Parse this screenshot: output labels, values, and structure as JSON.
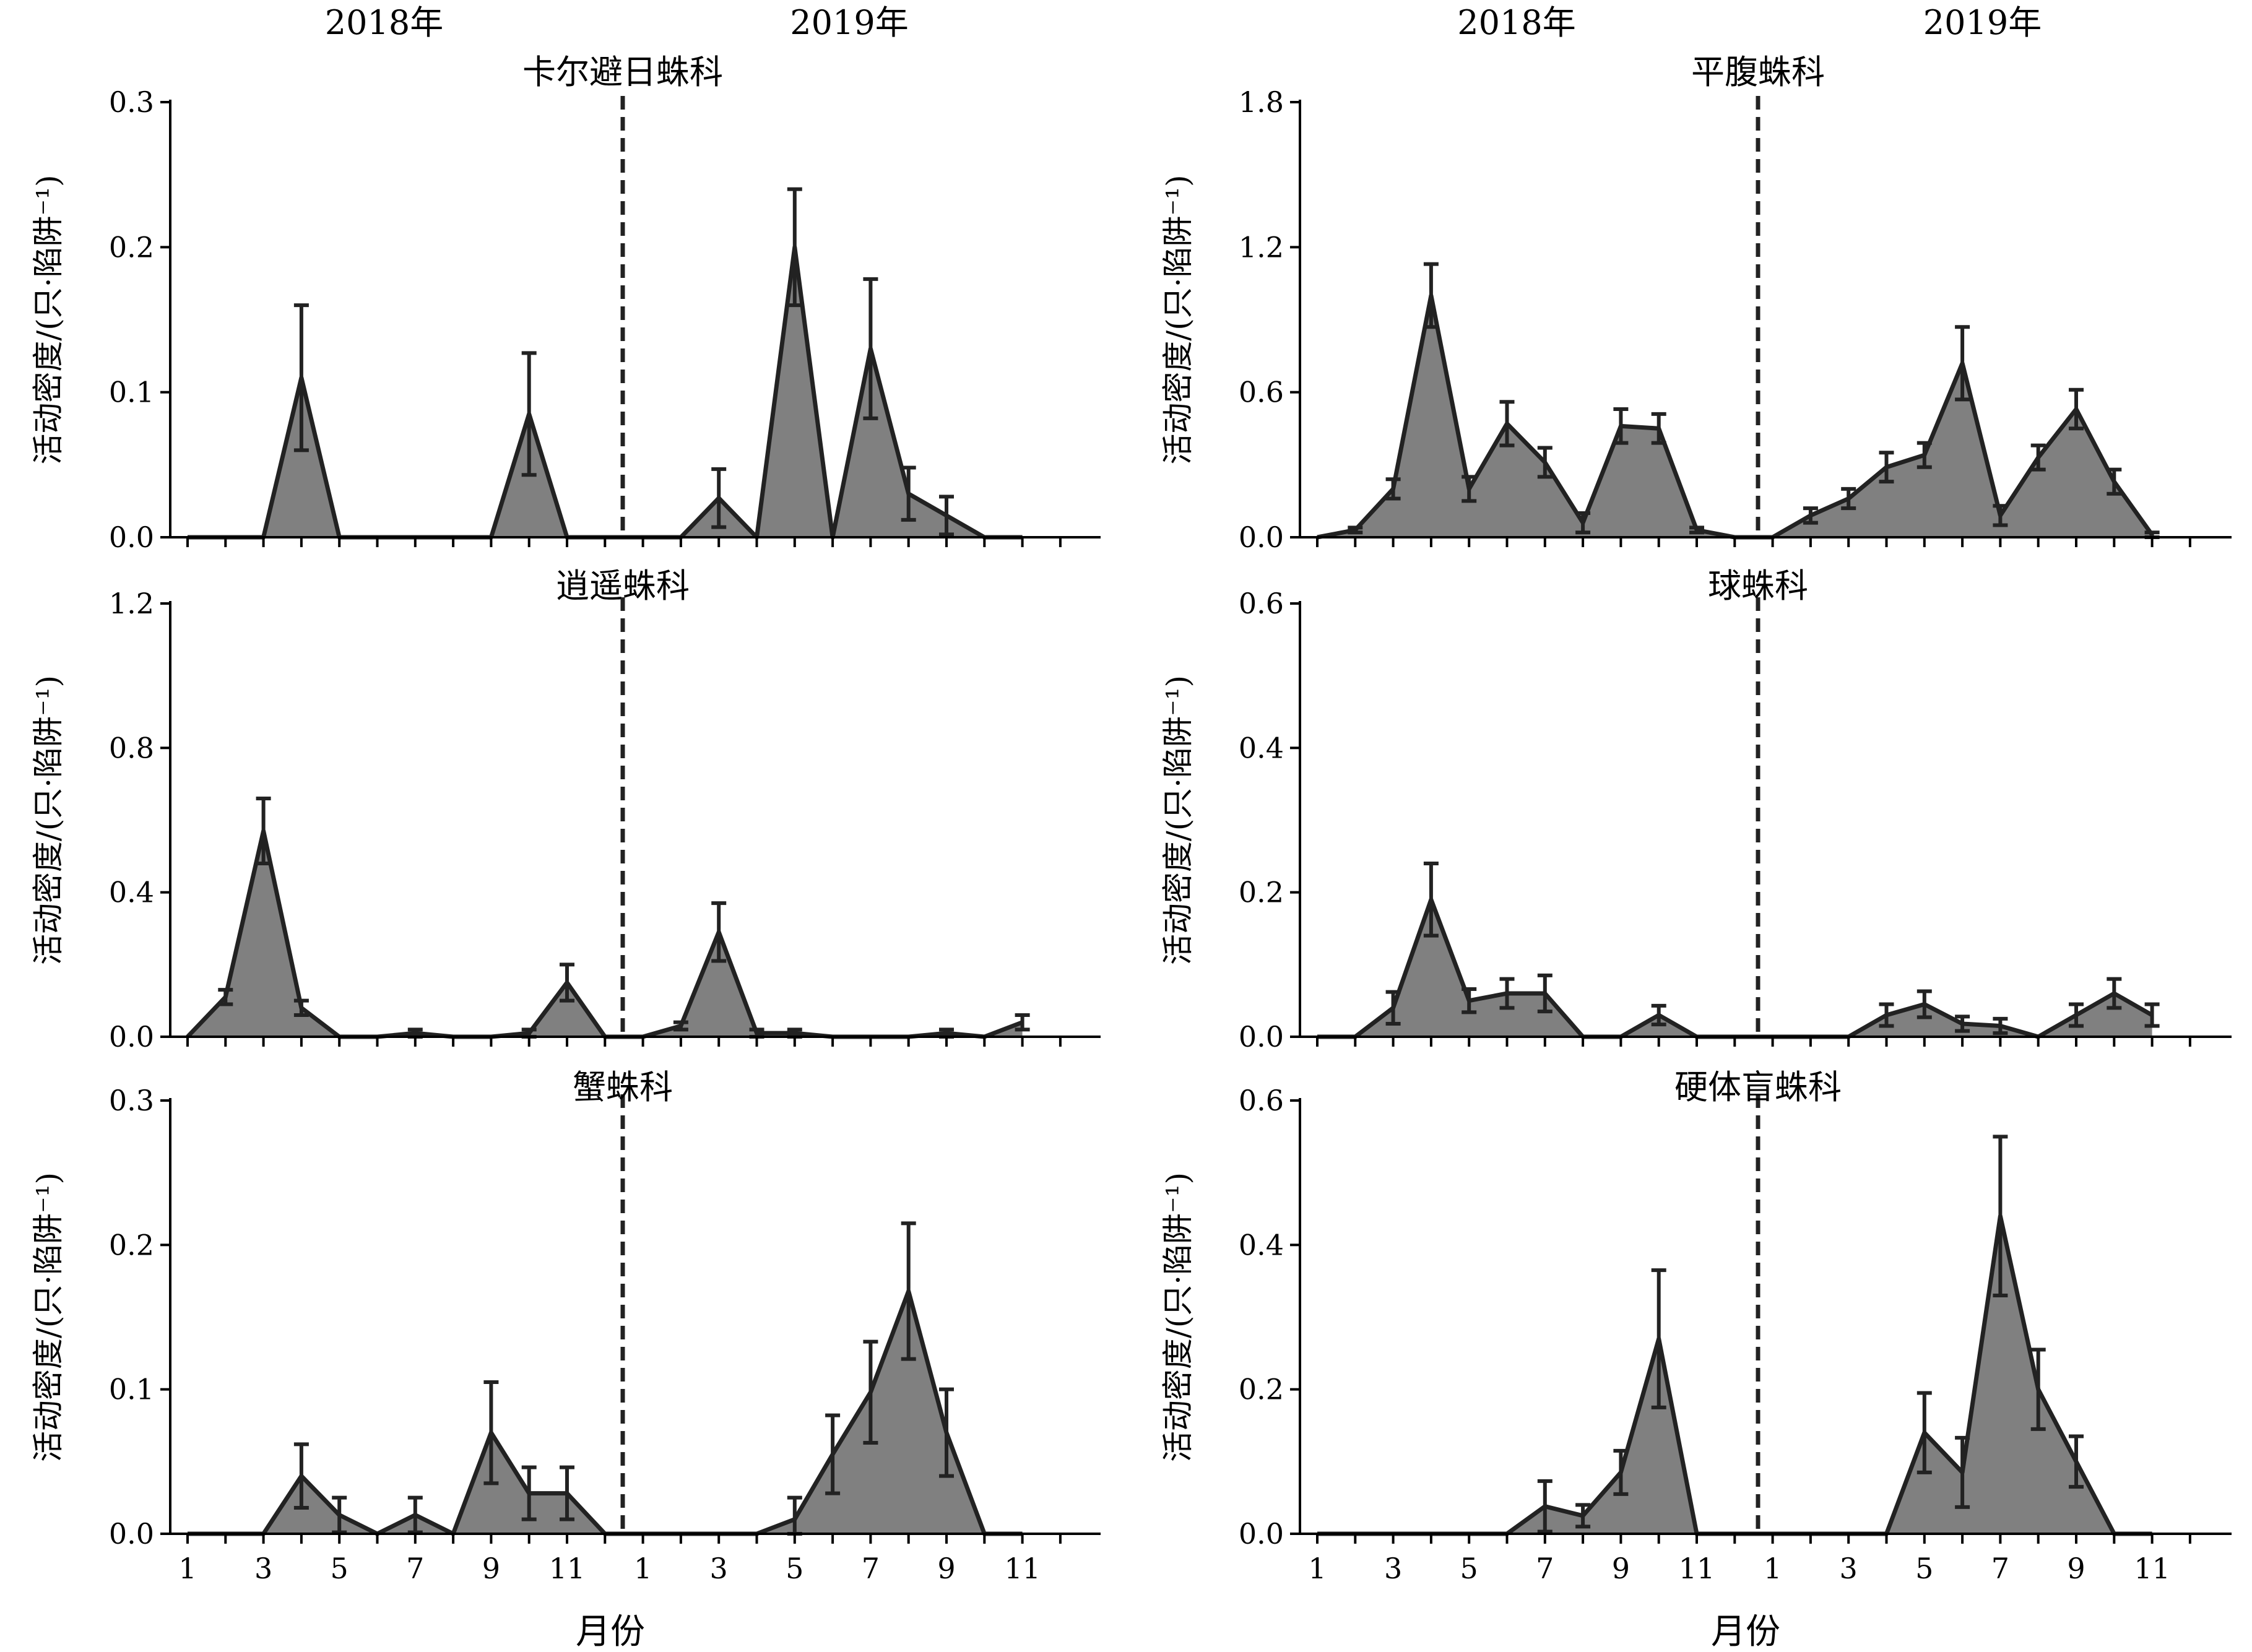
{
  "style": {
    "fill_color": "#808080",
    "line_color": "#222222",
    "axis_color": "#000000"
  },
  "chart_data": [
    {
      "type": "area",
      "title": "卡尔避日蛛科",
      "ylabel": "活动密度/(只·陷阱⁻¹)",
      "xlabel": "",
      "ylim": [
        0,
        0.3
      ],
      "yticks": [
        "0.0",
        "0.1",
        "0.2",
        "0.3"
      ],
      "x": [
        1,
        2,
        3,
        4,
        5,
        6,
        7,
        8,
        9,
        10,
        11,
        12,
        13,
        14,
        15,
        16,
        17,
        18,
        19,
        20,
        21,
        22,
        23
      ],
      "values": [
        0,
        0,
        0,
        0.11,
        0,
        0,
        0,
        0,
        0,
        0.085,
        0,
        0,
        0,
        0,
        0.027,
        0,
        0.2,
        0,
        0.13,
        0.03,
        0.015,
        0,
        0
      ],
      "errors": [
        0,
        0,
        0,
        0.05,
        0,
        0,
        0,
        0,
        0,
        0.042,
        0,
        0,
        0,
        0,
        0.02,
        0,
        0.04,
        0,
        0.048,
        0.018,
        0.013,
        0,
        0
      ],
      "years": [
        "2018年",
        "2019年"
      ]
    },
    {
      "type": "area",
      "title": "平腹蛛科",
      "ylabel": "活动密度/(只·陷阱⁻¹)",
      "xlabel": "",
      "ylim": [
        0,
        1.8
      ],
      "yticks": [
        "0.0",
        "0.6",
        "1.2",
        "1.8"
      ],
      "x": [
        1,
        2,
        3,
        4,
        5,
        6,
        7,
        8,
        9,
        10,
        11,
        12,
        13,
        14,
        15,
        16,
        17,
        18,
        19,
        20,
        21,
        22,
        23
      ],
      "values": [
        0,
        0.03,
        0.2,
        1.0,
        0.2,
        0.47,
        0.31,
        0.06,
        0.46,
        0.45,
        0.03,
        0,
        0,
        0.09,
        0.16,
        0.29,
        0.34,
        0.72,
        0.09,
        0.33,
        0.53,
        0.23,
        0.01
      ],
      "errors": [
        0,
        0.01,
        0.04,
        0.13,
        0.05,
        0.09,
        0.06,
        0.04,
        0.07,
        0.06,
        0.01,
        0,
        0,
        0.03,
        0.04,
        0.06,
        0.05,
        0.15,
        0.04,
        0.05,
        0.08,
        0.05,
        0.01
      ],
      "years": [
        "2018年",
        "2019年"
      ]
    },
    {
      "type": "area",
      "title": "逍遥蛛科",
      "ylabel": "活动密度/(只·陷阱⁻¹)",
      "xlabel": "",
      "ylim": [
        0,
        1.2
      ],
      "yticks": [
        "0.0",
        "0.4",
        "0.8",
        "1.2"
      ],
      "x": [
        1,
        2,
        3,
        4,
        5,
        6,
        7,
        8,
        9,
        10,
        11,
        12,
        13,
        14,
        15,
        16,
        17,
        18,
        19,
        20,
        21,
        22,
        23
      ],
      "values": [
        0,
        0.11,
        0.57,
        0.08,
        0,
        0,
        0.01,
        0,
        0,
        0.01,
        0.15,
        0,
        0,
        0.03,
        0.29,
        0.01,
        0.01,
        0,
        0,
        0,
        0.01,
        0,
        0.04
      ],
      "errors": [
        0,
        0.02,
        0.09,
        0.02,
        0,
        0,
        0.01,
        0,
        0,
        0.01,
        0.05,
        0,
        0,
        0.01,
        0.08,
        0.01,
        0.01,
        0,
        0,
        0,
        0.01,
        0,
        0.02
      ],
      "years": [
        "",
        ""
      ]
    },
    {
      "type": "area",
      "title": "球蛛科",
      "ylabel": "活动密度/(只·陷阱⁻¹)",
      "xlabel": "",
      "ylim": [
        0,
        0.6
      ],
      "yticks": [
        "0.0",
        "0.2",
        "0.4",
        "0.6"
      ],
      "x": [
        1,
        2,
        3,
        4,
        5,
        6,
        7,
        8,
        9,
        10,
        11,
        12,
        13,
        14,
        15,
        16,
        17,
        18,
        19,
        20,
        21,
        22,
        23
      ],
      "values": [
        0,
        0,
        0.04,
        0.19,
        0.05,
        0.06,
        0.06,
        0,
        0,
        0.03,
        0,
        0,
        0,
        0,
        0,
        0.03,
        0.045,
        0.018,
        0.015,
        0,
        0.03,
        0.06,
        0.03
      ],
      "errors": [
        0,
        0,
        0.022,
        0.05,
        0.016,
        0.02,
        0.025,
        0,
        0,
        0.013,
        0,
        0,
        0,
        0,
        0,
        0.015,
        0.018,
        0.01,
        0.01,
        0,
        0.015,
        0.02,
        0.015
      ],
      "years": [
        "",
        ""
      ]
    },
    {
      "type": "area",
      "title": "蟹蛛科",
      "ylabel": "活动密度/(只·陷阱⁻¹)",
      "xlabel": "月份",
      "ylim": [
        0,
        0.3
      ],
      "yticks": [
        "0.0",
        "0.1",
        "0.2",
        "0.3"
      ],
      "xticks": [
        "1",
        "3",
        "5",
        "7",
        "9",
        "11",
        "1",
        "3",
        "5",
        "7",
        "9",
        "11"
      ],
      "x": [
        1,
        2,
        3,
        4,
        5,
        6,
        7,
        8,
        9,
        10,
        11,
        12,
        13,
        14,
        15,
        16,
        17,
        18,
        19,
        20,
        21,
        22,
        23
      ],
      "values": [
        0,
        0,
        0,
        0.04,
        0.013,
        0,
        0.013,
        0,
        0.07,
        0.028,
        0.028,
        0,
        0,
        0,
        0,
        0,
        0.01,
        0.055,
        0.098,
        0.168,
        0.07,
        0,
        0
      ],
      "errors": [
        0,
        0,
        0,
        0.022,
        0.012,
        0,
        0.012,
        0,
        0.035,
        0.018,
        0.018,
        0,
        0,
        0,
        0,
        0,
        0.015,
        0.027,
        0.035,
        0.047,
        0.03,
        0,
        0
      ],
      "years": [
        "",
        ""
      ]
    },
    {
      "type": "area",
      "title": "硬体盲蛛科",
      "ylabel": "活动密度/(只·陷阱⁻¹)",
      "xlabel": "月份",
      "ylim": [
        0,
        0.6
      ],
      "yticks": [
        "0.0",
        "0.2",
        "0.4",
        "0.6"
      ],
      "xticks": [
        "1",
        "3",
        "5",
        "7",
        "9",
        "11",
        "1",
        "3",
        "5",
        "7",
        "9",
        "11"
      ],
      "x": [
        1,
        2,
        3,
        4,
        5,
        6,
        7,
        8,
        9,
        10,
        11,
        12,
        13,
        14,
        15,
        16,
        17,
        18,
        19,
        20,
        21,
        22,
        23
      ],
      "values": [
        0,
        0,
        0,
        0,
        0,
        0,
        0.038,
        0.025,
        0.085,
        0.27,
        0,
        0,
        0,
        0,
        0,
        0,
        0.14,
        0.085,
        0.44,
        0.2,
        0.1,
        0,
        0
      ],
      "errors": [
        0,
        0,
        0,
        0,
        0,
        0,
        0.035,
        0.015,
        0.03,
        0.095,
        0,
        0,
        0,
        0,
        0,
        0,
        0.055,
        0.048,
        0.11,
        0.055,
        0.035,
        0,
        0
      ],
      "years": [
        "",
        ""
      ]
    }
  ]
}
